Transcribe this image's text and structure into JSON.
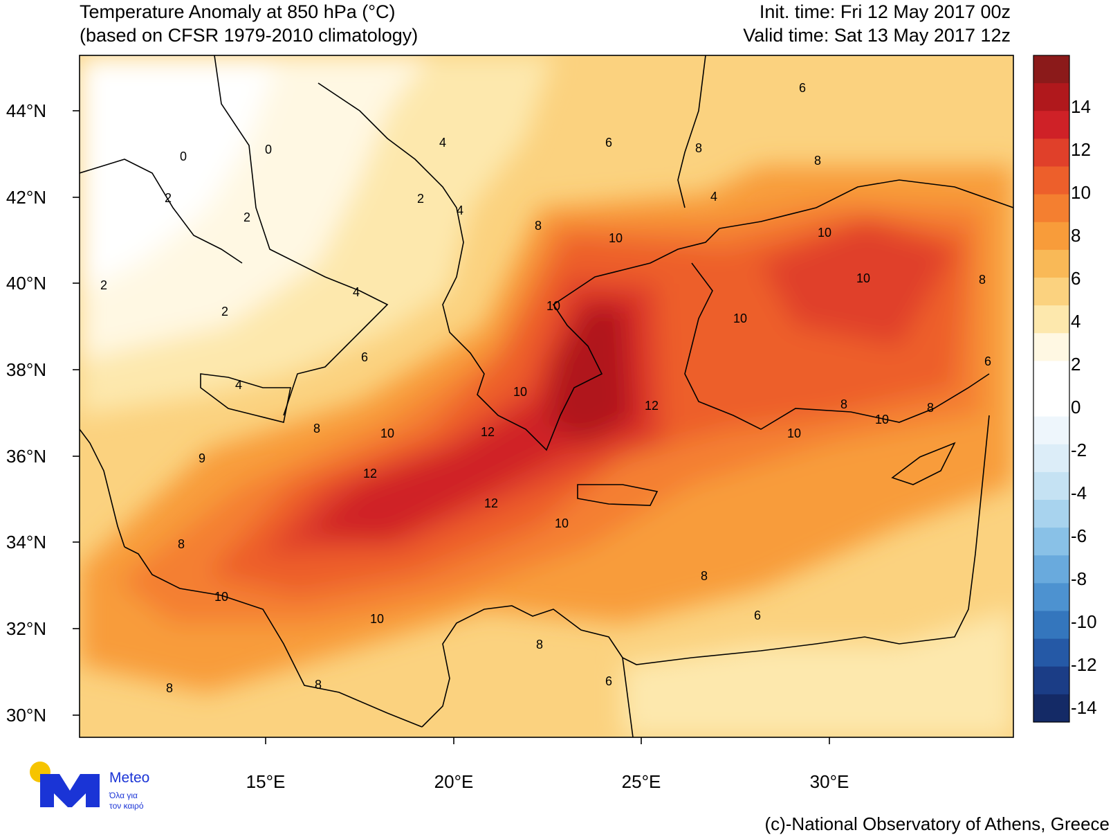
{
  "title": {
    "line1": "Temperature Anomaly at 850 hPa (°C)",
    "line2": "(based on CFSR 1979-2010 climatology)"
  },
  "times": {
    "init": "Init. time: Fri 12 May 2017 00z",
    "valid": "Valid time: Sat 13 May 2017 12z"
  },
  "lat_labels": [
    "44°N",
    "42°N",
    "40°N",
    "38°N",
    "36°N",
    "34°N",
    "32°N",
    "30°N"
  ],
  "lon_labels": [
    "15°E",
    "20°E",
    "25°E",
    "30°E"
  ],
  "colorbar": {
    "labels": [
      "14",
      "12",
      "10",
      "8",
      "6",
      "4",
      "2",
      "0",
      "-2",
      "-4",
      "-6",
      "-8",
      "-10",
      "-12",
      "-14"
    ],
    "colors": [
      "#8b1a1a",
      "#b0181c",
      "#cf2127",
      "#e0402a",
      "#ed5f2b",
      "#f47f30",
      "#f89c3a",
      "#f9b957",
      "#fbd27f",
      "#fde8ad",
      "#fff8e3",
      "#ffffff",
      "#ffffff",
      "#eef6fc",
      "#dcedf8",
      "#c5e2f3",
      "#a8d3ee",
      "#89c1e7",
      "#69aadd",
      "#4d92d0",
      "#3476bd",
      "#2559a6",
      "#1b3d86",
      "#142a66"
    ]
  },
  "contour_labels": [
    "0",
    "0",
    "2",
    "2",
    "2",
    "2",
    "2",
    "4",
    "4",
    "4",
    "4",
    "4",
    "6",
    "6",
    "6",
    "6",
    "6",
    "6",
    "8",
    "8",
    "8",
    "8",
    "8",
    "8",
    "8",
    "8",
    "8",
    "8",
    "8",
    "8",
    "10",
    "10",
    "10",
    "10",
    "10",
    "10",
    "10",
    "10",
    "10",
    "10",
    "10",
    "10",
    "12",
    "12",
    "12",
    "12",
    "9"
  ],
  "logo": {
    "name": "Meteo",
    "tagline1": "Όλα για",
    "tagline2": "τον καιρό",
    "yellow": "#f6c400",
    "blue": "#1a34d6"
  },
  "credit": "(c)-National Observatory of Athens, Greece"
}
